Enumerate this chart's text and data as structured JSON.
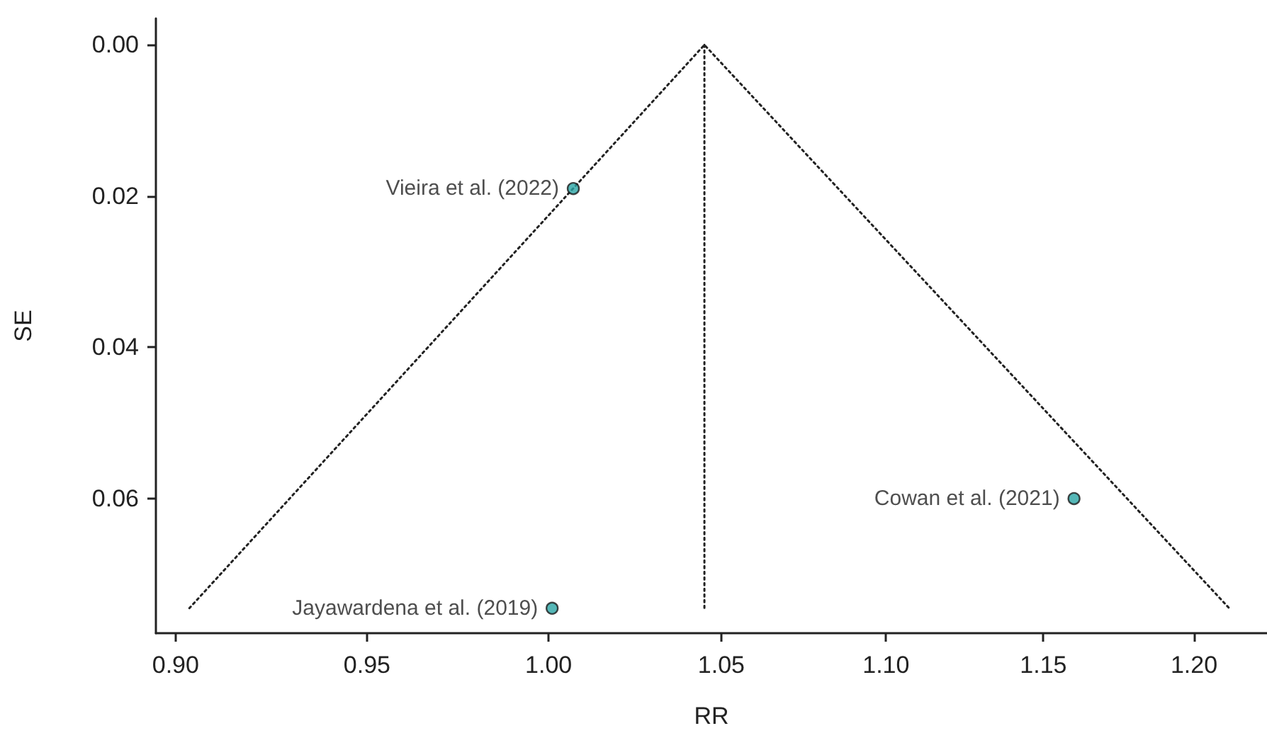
{
  "chart_data": {
    "type": "scatter",
    "xlabel": "RR",
    "ylabel": "SE",
    "log": "x",
    "xlim": [
      0.895,
      1.225
    ],
    "xticks": [
      {
        "value": 0.9,
        "label": "0.90"
      },
      0.95,
      {
        "value": 1.0,
        "label": "1.00"
      },
      1.05,
      {
        "value": 1.1,
        "label": "1.10"
      },
      1.15,
      {
        "value": 1.2,
        "label": "1.20"
      }
    ],
    "ylim": [
      0.0778,
      -0.0035
    ],
    "yticks": [
      {
        "value": 0,
        "label": "0.00"
      },
      0.02,
      0.04,
      0.06
    ],
    "series": [
      {
        "type": "line",
        "line_style": "dotted",
        "marker": "none",
        "color": "#222222",
        "x": [
          0.9035,
          1.045,
          1.212
        ],
        "values": [
          0.0745,
          0,
          0.0745
        ]
      },
      {
        "type": "line",
        "line_style": "dotted",
        "marker": "none",
        "color": "#222222",
        "x": [
          1.045,
          1.045
        ],
        "values": [
          0,
          0.0745
        ]
      },
      {
        "marker": "circle",
        "color": "#2aa5a5",
        "x": [
          1.007,
          1.16,
          1.001
        ],
        "values": [
          0.019,
          0.06,
          0.0745
        ]
      }
    ],
    "annotations": [
      {
        "text": "Vieira et al. (2022)",
        "x": 1.007,
        "y": 0.019
      },
      {
        "text": "Cowan et al. (2021)",
        "x": 1.16,
        "y": 0.06
      },
      {
        "text": "Jayawardena et al. (2019)",
        "x": 1.001,
        "y": 0.0745
      }
    ]
  }
}
